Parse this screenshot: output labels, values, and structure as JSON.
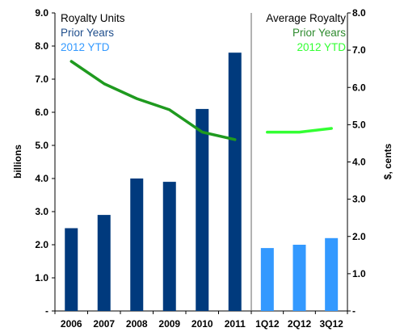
{
  "chart_data": {
    "type": "bar",
    "left_panel": {
      "legend_title": "Royalty Units",
      "legend_items": [
        {
          "label": "Prior Years",
          "color": "#1f4e8c"
        },
        {
          "label": "2012 YTD",
          "color": "#3399ff"
        }
      ]
    },
    "right_panel": {
      "legend_title": "Average Royalty",
      "legend_items": [
        {
          "label": "Prior Years",
          "color": "#2e8b2e"
        },
        {
          "label": "2012 YTD",
          "color": "#33ff33"
        }
      ]
    },
    "categories": [
      "2006",
      "2007",
      "2008",
      "2009",
      "2010",
      "2011",
      "1Q12",
      "2Q12",
      "3Q12"
    ],
    "bar_series": [
      {
        "name": "Prior Years",
        "color": "#003a7d",
        "values": [
          2.5,
          2.9,
          4.0,
          3.9,
          6.1,
          7.8,
          null,
          null,
          null
        ]
      },
      {
        "name": "2012 YTD",
        "color": "#3399ff",
        "values": [
          null,
          null,
          null,
          null,
          null,
          null,
          1.9,
          2.0,
          2.2
        ]
      }
    ],
    "line_series": [
      {
        "name": "Prior Years",
        "color": "#1f9a1f",
        "values": [
          6.7,
          6.1,
          5.7,
          5.4,
          4.8,
          4.6,
          null,
          null,
          null
        ]
      },
      {
        "name": "2012 YTD",
        "color": "#33ff33",
        "values": [
          null,
          null,
          null,
          null,
          null,
          null,
          4.8,
          4.8,
          4.9
        ]
      }
    ],
    "y_left": {
      "label": "billions",
      "min": 0,
      "max": 9,
      "ticks": [
        "-",
        "1.0",
        "2.0",
        "3.0",
        "4.0",
        "5.0",
        "6.0",
        "7.0",
        "8.0",
        "9.0"
      ]
    },
    "y_right": {
      "label": "$, cents",
      "min": 0,
      "max": 8,
      "ticks": [
        "-",
        "1.0",
        "2.0",
        "3.0",
        "4.0",
        "5.0",
        "6.0",
        "7.0",
        "8.0"
      ]
    },
    "grid": false
  }
}
